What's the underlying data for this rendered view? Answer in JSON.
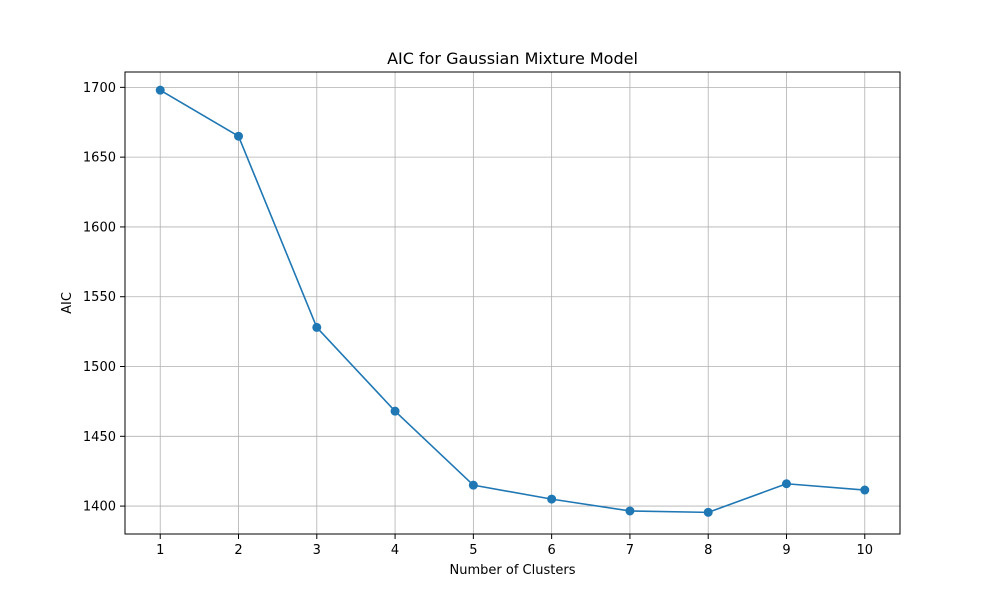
{
  "chart_data": {
    "type": "line",
    "title": "AIC for Gaussian Mixture Model",
    "xlabel": "Number of Clusters",
    "ylabel": "AIC",
    "x": [
      1,
      2,
      3,
      4,
      5,
      6,
      7,
      8,
      9,
      10
    ],
    "series": [
      {
        "values": [
          1698,
          1665,
          1528,
          1468,
          1415,
          1405,
          1396.5,
          1395.5,
          1416,
          1411.5
        ],
        "color": "#1f77b4",
        "marker": "circle"
      }
    ],
    "xticks": [
      "1",
      "2",
      "3",
      "4",
      "5",
      "6",
      "7",
      "8",
      "9",
      "10"
    ],
    "yticks": [
      "1400",
      "1450",
      "1500",
      "1550",
      "1600",
      "1650",
      "1700"
    ],
    "xlim": [
      0.55,
      10.45
    ],
    "ylim": [
      1380,
      1711
    ],
    "grid": true
  }
}
